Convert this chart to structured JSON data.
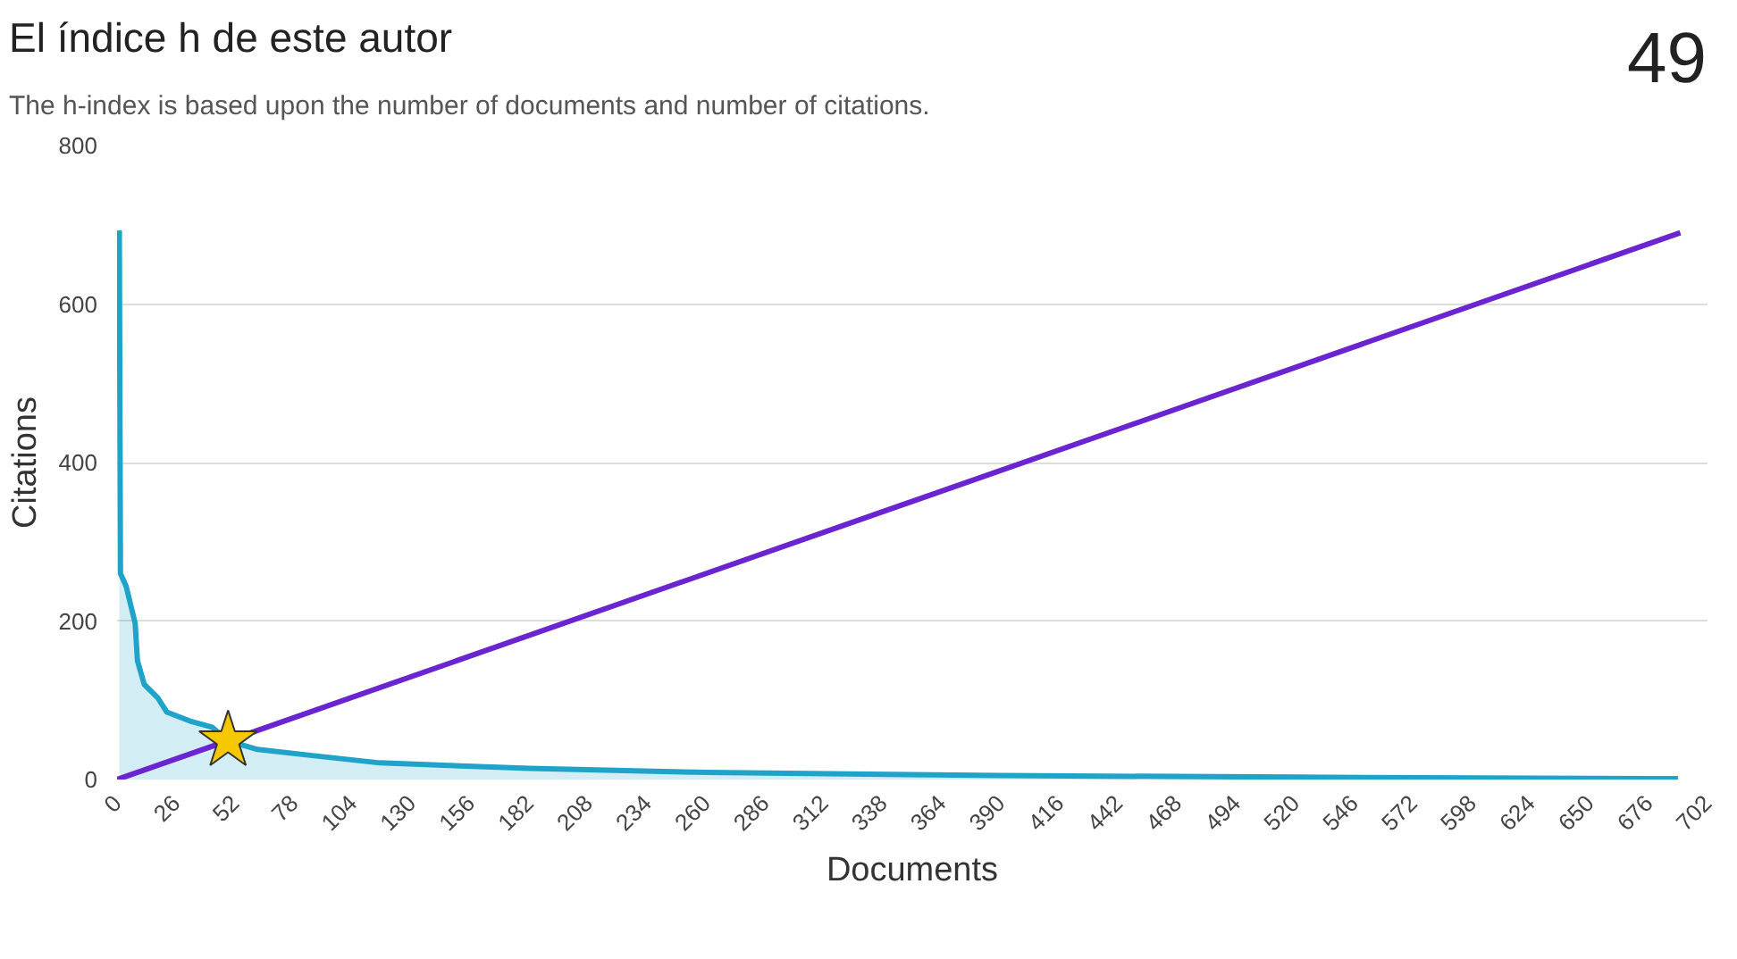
{
  "chart_data": {
    "type": "area",
    "title": "El índice h de este autor",
    "subtitle": "The h-index is based upon the number of documents and number of citations.",
    "xlabel": "Documents",
    "ylabel": "Citations",
    "annotations": [
      "49"
    ],
    "series": [
      {
        "color": "#1fa3c8",
        "x": [
          1,
          1.5,
          4,
          8,
          9,
          12,
          18,
          22,
          33,
          42,
          49,
          62,
          87,
          116,
          144,
          182,
          260,
          390,
          520,
          676,
          689
        ],
        "values": [
          693,
          260,
          244,
          197,
          150,
          120,
          103,
          85,
          73,
          66,
          49,
          38,
          30,
          21,
          18,
          14,
          9,
          5,
          3,
          1,
          1
        ]
      },
      {
        "type": "line",
        "color": "#6a24d0",
        "x": [
          0,
          690
        ],
        "values": [
          0,
          690
        ]
      },
      {
        "type": "scatter",
        "marker": "star",
        "color": "#f5c800",
        "x": [
          49
        ],
        "values": [
          49
        ]
      }
    ],
    "xlim": [
      0,
      702
    ],
    "ylim": [
      0,
      800
    ],
    "xticks": [
      0,
      26,
      52,
      78,
      104,
      130,
      156,
      182,
      208,
      234,
      260,
      286,
      312,
      338,
      364,
      390,
      416,
      442,
      468,
      494,
      520,
      546,
      572,
      598,
      624,
      650,
      676,
      702
    ],
    "yticks": [
      0,
      200,
      400,
      600,
      800
    ],
    "grid": "y"
  }
}
